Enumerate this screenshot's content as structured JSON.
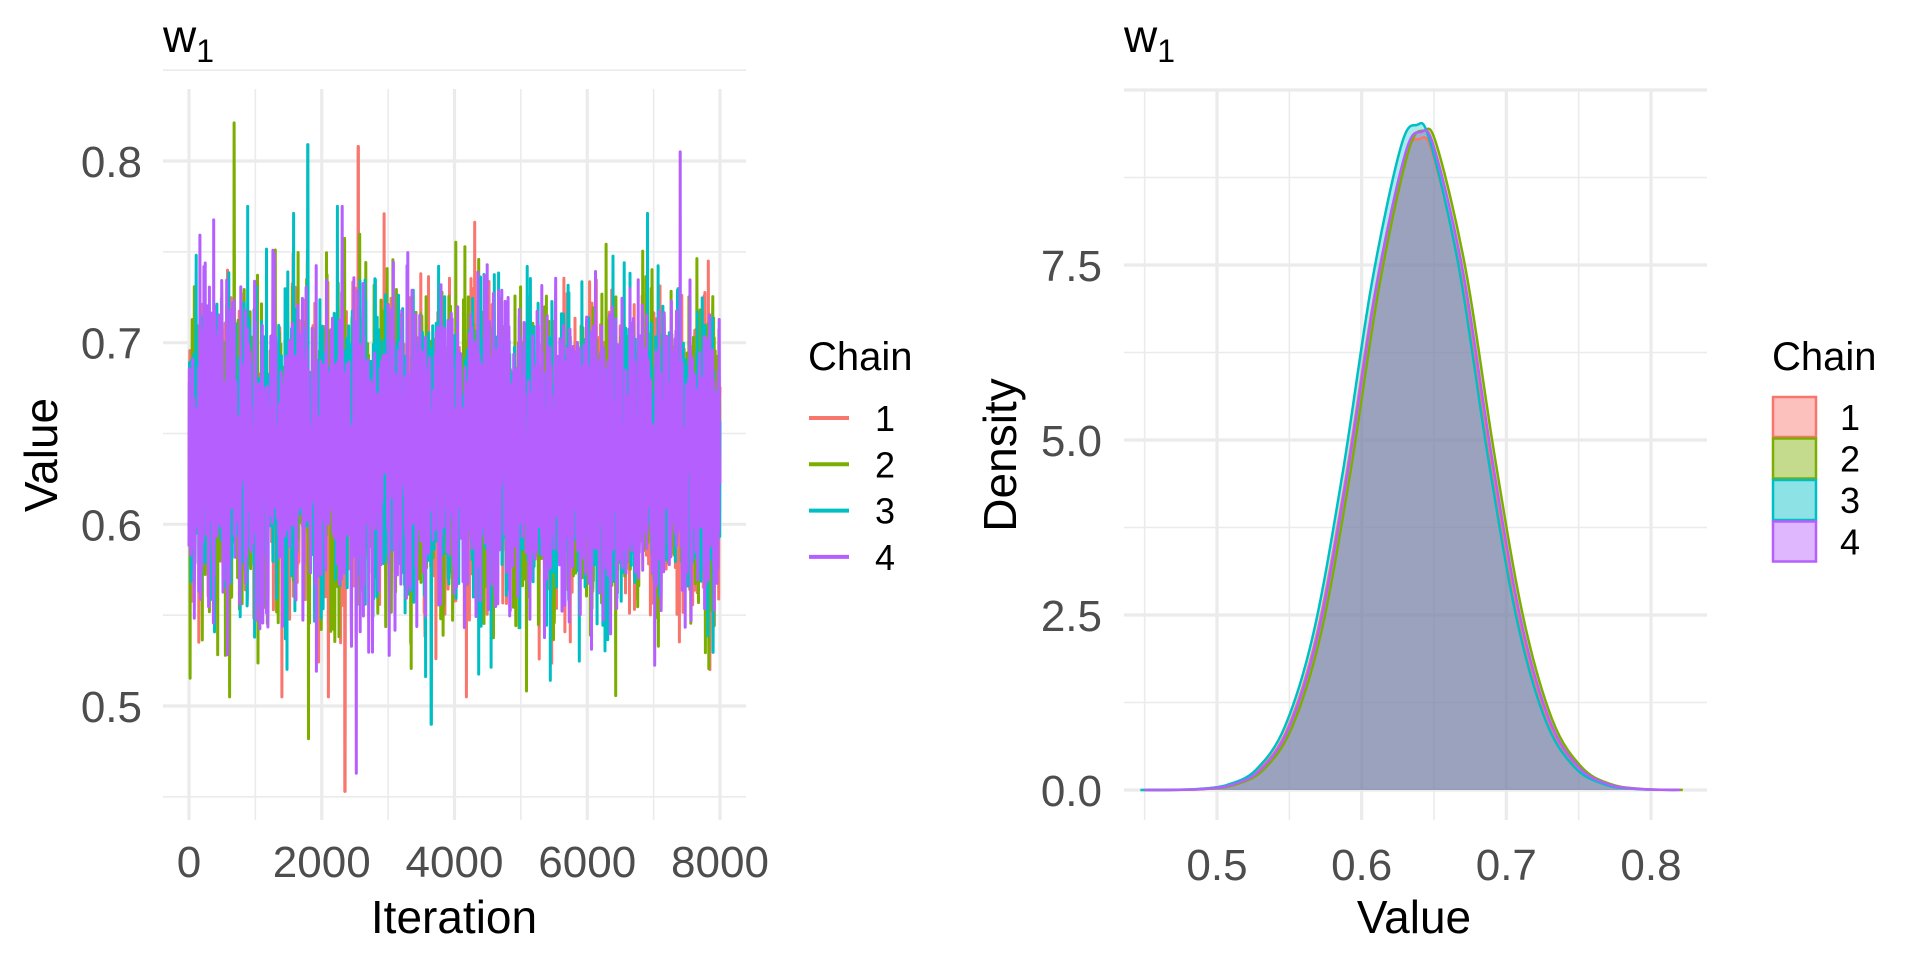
{
  "chart_data": [
    {
      "type": "line",
      "title": "w",
      "title_subscript": "1",
      "xlabel": "Iteration",
      "ylabel": "Value",
      "xlim": [
        0,
        8000
      ],
      "ylim": [
        0.45,
        0.85
      ],
      "x_ticks": [
        0,
        2000,
        4000,
        6000,
        8000
      ],
      "x_tick_labels": [
        "0",
        "2000",
        "4000",
        "6000",
        "8000"
      ],
      "y_ticks": [
        0.5,
        0.6,
        0.7,
        0.8
      ],
      "y_tick_labels": [
        "0.5",
        "0.6",
        "0.7",
        "0.8"
      ],
      "grid": true,
      "legend": {
        "title": "Chain",
        "placement": "right",
        "entries": [
          "1",
          "2",
          "3",
          "4"
        ]
      },
      "series": [
        {
          "name": "1",
          "color": "#F8766D",
          "iterations": 8000,
          "mean": 0.64,
          "sd": 0.04,
          "min": {
            "iter": 2350,
            "value": 0.453
          },
          "max": {
            "iter": 2550,
            "value": 0.808
          }
        },
        {
          "name": "2",
          "color": "#7CAE00",
          "iterations": 8000,
          "mean": 0.641,
          "sd": 0.04,
          "min": {
            "iter": 1800,
            "value": 0.482
          },
          "max": {
            "iter": 680,
            "value": 0.821
          }
        },
        {
          "name": "3",
          "color": "#00BFC4",
          "iterations": 8000,
          "mean": 0.639,
          "sd": 0.04,
          "min": {
            "iter": 3650,
            "value": 0.49
          },
          "max": {
            "iter": 1790,
            "value": 0.809
          }
        },
        {
          "name": "4",
          "color": "#B65FFF",
          "iterations": 8000,
          "mean": 0.64,
          "sd": 0.04,
          "min": {
            "iter": 2520,
            "value": 0.463
          },
          "max": {
            "iter": 7400,
            "value": 0.805
          }
        }
      ]
    },
    {
      "type": "area",
      "title": "w",
      "title_subscript": "1",
      "xlabel": "Value",
      "ylabel": "Density",
      "xlim": [
        0.445,
        0.83
      ],
      "ylim": [
        0,
        9.8
      ],
      "x_ticks": [
        0.5,
        0.6,
        0.7,
        0.8
      ],
      "x_tick_labels": [
        "0.5",
        "0.6",
        "0.7",
        "0.8"
      ],
      "y_ticks": [
        0,
        2.5,
        5,
        7.5
      ],
      "y_tick_labels": [
        "0.0",
        "2.5",
        "5.0",
        "7.5"
      ],
      "grid": true,
      "legend": {
        "title": "Chain",
        "placement": "right",
        "entries": [
          "1",
          "2",
          "3",
          "4"
        ]
      },
      "x": [
        0.45,
        0.47,
        0.49,
        0.51,
        0.53,
        0.55,
        0.57,
        0.59,
        0.61,
        0.63,
        0.641,
        0.65,
        0.67,
        0.69,
        0.71,
        0.73,
        0.75,
        0.77,
        0.79,
        0.81,
        0.82
      ],
      "density": [
        0.0003,
        0.002,
        0.015,
        0.073,
        0.29,
        0.91,
        2.27,
        4.55,
        7.24,
        9.18,
        9.5,
        9.28,
        7.49,
        4.8,
        2.46,
        1.0,
        0.33,
        0.085,
        0.017,
        0.003,
        0.001
      ],
      "series": [
        {
          "name": "1",
          "color": "#F8766D",
          "shift": -0.001,
          "peak": 9.3
        },
        {
          "name": "2",
          "color": "#7CAE00",
          "shift": 0.002,
          "peak": 9.42
        },
        {
          "name": "3",
          "color": "#00BFC4",
          "shift": -0.003,
          "peak": 9.5
        },
        {
          "name": "4",
          "color": "#B65FFF",
          "shift": 0.0,
          "peak": 9.4
        }
      ]
    }
  ]
}
